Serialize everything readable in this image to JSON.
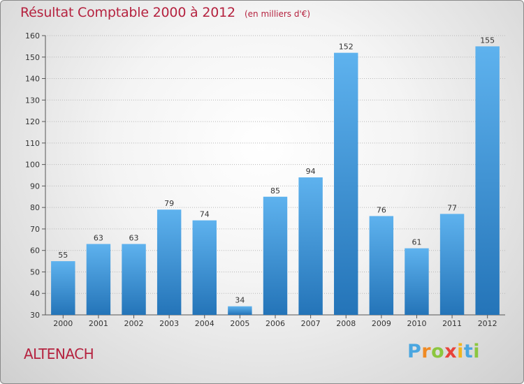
{
  "chart_data": {
    "type": "bar",
    "title": "Résultat Comptable 2000 à 2012",
    "subtitle": "(en milliers d'€)",
    "categories": [
      "2000",
      "2001",
      "2002",
      "2003",
      "2004",
      "2005",
      "2006",
      "2007",
      "2008",
      "2009",
      "2010",
      "2011",
      "2012"
    ],
    "values": [
      55,
      63,
      63,
      79,
      74,
      34,
      85,
      94,
      152,
      76,
      61,
      77,
      155
    ],
    "ylim": [
      30,
      160
    ],
    "yticks": [
      "30",
      "40",
      "50",
      "60",
      "70",
      "80",
      "90",
      "100",
      "110",
      "120",
      "130",
      "140",
      "150",
      "160"
    ],
    "xlabel": "",
    "ylabel": "",
    "grid": "horizontal dotted",
    "bar_color": "#3d93d6"
  },
  "commune": "ALTENACH",
  "logo": {
    "letters": [
      "P",
      "r",
      "o",
      "x",
      "i",
      "t",
      "i"
    ],
    "colors": [
      "#4aa6e0",
      "#f08a24",
      "#8cc63f",
      "#e8423a",
      "#f2b51c",
      "#4aa6e0",
      "#8cc63f"
    ]
  }
}
